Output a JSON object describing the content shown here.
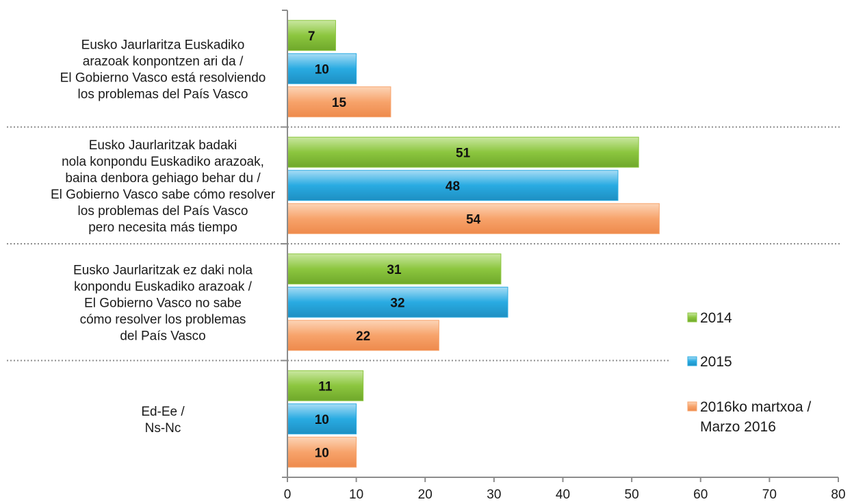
{
  "chart_data": {
    "type": "bar",
    "orientation": "horizontal",
    "categories": [
      [
        "Eusko Jaurlaritza Euskadiko",
        "arazoak konpontzen ari da /",
        "El Gobierno Vasco está resolviendo",
        "los problemas del País Vasco"
      ],
      [
        "Eusko Jaurlaritzak badaki",
        "nola konpondu Euskadiko arazoak,",
        "baina denbora gehiago behar du /",
        "El Gobierno Vasco sabe cómo resolver",
        "los problemas del País Vasco",
        "pero necesita más tiempo"
      ],
      [
        "Eusko Jaurlaritzak ez daki nola",
        "konpondu Euskadiko arazoak /",
        "El Gobierno Vasco no sabe",
        "cómo resolver los problemas",
        "del País Vasco"
      ],
      [
        "Ed-Ee /",
        "Ns-Nc"
      ]
    ],
    "series": [
      {
        "name": "2014",
        "values": [
          7,
          51,
          31,
          11
        ],
        "color": "#8cc63f"
      },
      {
        "name": "2015",
        "values": [
          10,
          48,
          32,
          10
        ],
        "color": "#29abe2"
      },
      {
        "name": "2016ko martxoa / Marzo 2016",
        "legend_lines": [
          "2016ko martxoa /",
          "Marzo 2016"
        ],
        "values": [
          15,
          54,
          22,
          10
        ],
        "color": "#f7a36b"
      }
    ],
    "xlim": [
      0,
      80
    ],
    "xticks": [
      "0",
      "10",
      "20",
      "30",
      "40",
      "50",
      "60",
      "70",
      "80"
    ],
    "grid": false,
    "legend_position": "right",
    "title": "",
    "xlabel": "",
    "ylabel": ""
  }
}
